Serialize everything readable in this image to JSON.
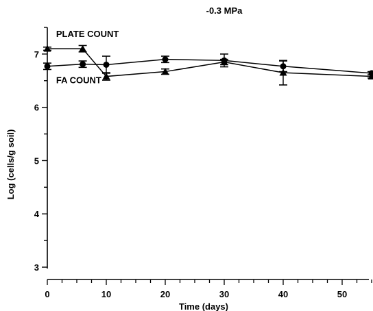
{
  "chart_data": {
    "type": "line",
    "title": "-0.3 MPa",
    "xlabel": "Time (days)",
    "ylabel": "Log (cells/g soil)",
    "xlim": [
      0,
      55
    ],
    "ylim": [
      3,
      7.5
    ],
    "x_ticks": [
      0,
      10,
      20,
      30,
      40,
      50
    ],
    "y_ticks": [
      3,
      4,
      5,
      6,
      7
    ],
    "x_tick_labels": [
      "0",
      "10",
      "20",
      "30",
      "40",
      "50"
    ],
    "y_tick_labels": [
      "3",
      "4",
      "5",
      "6",
      "7"
    ],
    "grid": false,
    "series": [
      {
        "name": "PLATE COUNT",
        "marker": "triangle",
        "points": [
          {
            "x": 0,
            "y": 7.1,
            "err": 0.03
          },
          {
            "x": 6,
            "y": 7.1,
            "err": 0.06
          },
          {
            "x": 10,
            "y": 6.58,
            "err": 0.07
          },
          {
            "x": 20,
            "y": 6.67,
            "err": 0.05
          },
          {
            "x": 30,
            "y": 6.85,
            "err": 0.05
          },
          {
            "x": 40,
            "y": 6.65,
            "err": 0.23
          },
          {
            "x": 55,
            "y": 6.58,
            "err": 0.03
          }
        ]
      },
      {
        "name": "FA COUNT",
        "marker": "circle",
        "points": [
          {
            "x": 0,
            "y": 6.77,
            "err": 0.06
          },
          {
            "x": 6,
            "y": 6.81,
            "err": 0.06
          },
          {
            "x": 10,
            "y": 6.8,
            "err": 0.16
          },
          {
            "x": 20,
            "y": 6.9,
            "err": 0.06
          },
          {
            "x": 30,
            "y": 6.88,
            "err": 0.12
          },
          {
            "x": 40,
            "y": 6.77,
            "err": 0.1
          },
          {
            "x": 55,
            "y": 6.64,
            "err": 0.03
          }
        ]
      }
    ],
    "annotations": [
      {
        "text": "PLATE COUNT",
        "x": 1.5,
        "y": 7.32
      },
      {
        "text": "FA COUNT",
        "x": 1.5,
        "y": 6.45
      }
    ]
  }
}
